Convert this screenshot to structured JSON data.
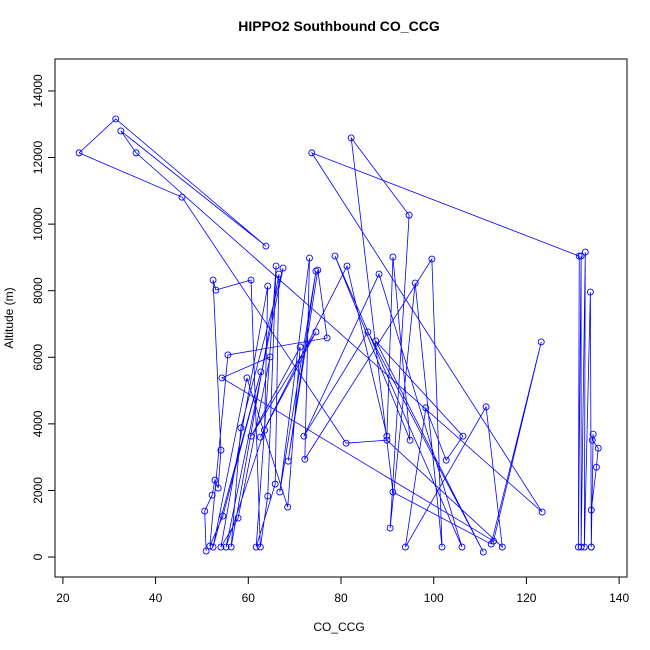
{
  "chart_data": {
    "type": "line",
    "title": "HIPPO2 Southbound CO_CCG",
    "x_label": "CO_CCG",
    "y_label": "Altitude (m)",
    "series": [
      {
        "color": "#0000ff",
        "x": [
          50.9,
          50.6,
          52.2,
          52.8,
          53.5,
          54.1,
          52.4,
          53.0,
          60.6,
          62.6,
          64.2,
          66.0,
          61.7,
          65.8,
          66.6,
          56.3,
          58.4,
          67.5,
          55.2,
          63.5,
          64.2,
          54.1,
          57.8,
          64.7,
          54.3,
          112.9,
          123.2,
          112.4,
          91.2,
          82.2,
          94.7,
          90.6,
          96.0,
          101.8,
          99.6,
          72.2,
          73.2,
          66.8,
          74.6,
          68.6,
          75.0,
          77.0,
          55.6,
          51.7,
          54.5,
          62.7,
          52.4,
          59.7,
          68.5,
          71.2,
          60.6,
          74.6,
          62.6,
          81.3,
          89.9,
          91.2,
          94.9,
          78.7,
          106.1,
          88.2,
          72.0,
          85.8,
          110.7,
          87.5,
          106.3,
          102.7,
          98.3,
          93.9,
          111.3,
          114.8,
          89.9,
          81.1,
          45.7,
          23.5,
          31.4,
          63.8,
          32.5,
          35.8,
          123.4,
          73.7,
          131.4,
          131.2,
          131.8,
          131.8,
          132.7,
          132.5,
          133.8,
          134.0,
          134.0,
          135.1,
          135.5,
          134.2,
          134.4,
          134.0
        ],
        "values": [
          180,
          1380,
          1860,
          2310,
          2070,
          3210,
          8320,
          8020,
          8320,
          300,
          1830,
          8740,
          300,
          2190,
          8500,
          300,
          3880,
          8680,
          300,
          3810,
          8140,
          300,
          1170,
          6010,
          5380,
          480,
          6460,
          390,
          1950,
          12590,
          10270,
          870,
          8230,
          300,
          8950,
          2940,
          8980,
          1950,
          8590,
          2880,
          8620,
          6580,
          6070,
          330,
          1230,
          5560,
          300,
          5380,
          1500,
          6310,
          3630,
          6760,
          3600,
          8740,
          3630,
          9010,
          3510,
          9040,
          300,
          8500,
          3630,
          6760,
          150,
          6490,
          3630,
          2910,
          4480,
          300,
          4510,
          300,
          3510,
          3420,
          10810,
          12140,
          13160,
          9340,
          12800,
          12140,
          1350,
          12140,
          9040,
          300,
          9040,
          300,
          9160,
          300,
          7960,
          300,
          1410,
          2700,
          3270,
          3510,
          3690,
          300
        ]
      }
    ],
    "xlim": [
      18.3,
      141.7
    ],
    "ylim": [
      -600,
      14960
    ],
    "xticks": [
      20,
      40,
      60,
      80,
      100,
      120,
      140
    ],
    "yticks": [
      0,
      2000,
      4000,
      6000,
      8000,
      10000,
      12000,
      14000
    ]
  }
}
